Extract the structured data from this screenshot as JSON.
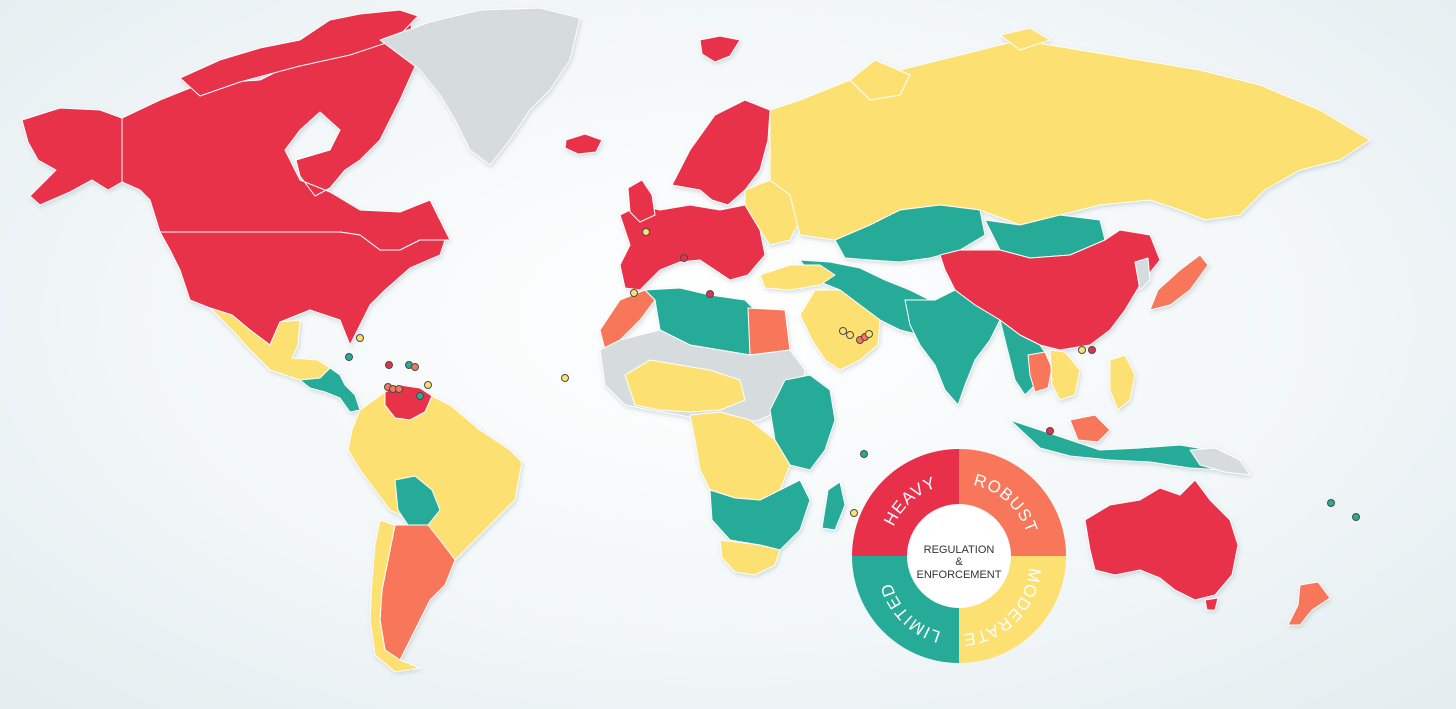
{
  "colors": {
    "heavy": "#e8304a",
    "robust": "#f8765a",
    "moderate": "#fde072",
    "limited": "#27ab99",
    "nodata": "#d6dcde"
  },
  "legend": {
    "center_line1": "REGULATION",
    "center_line2": "&",
    "center_line3": "ENFORCEMENT",
    "heavy": "HEAVY",
    "robust": "ROBUST",
    "moderate": "MODERATE",
    "limited": "LIMITED"
  }
}
